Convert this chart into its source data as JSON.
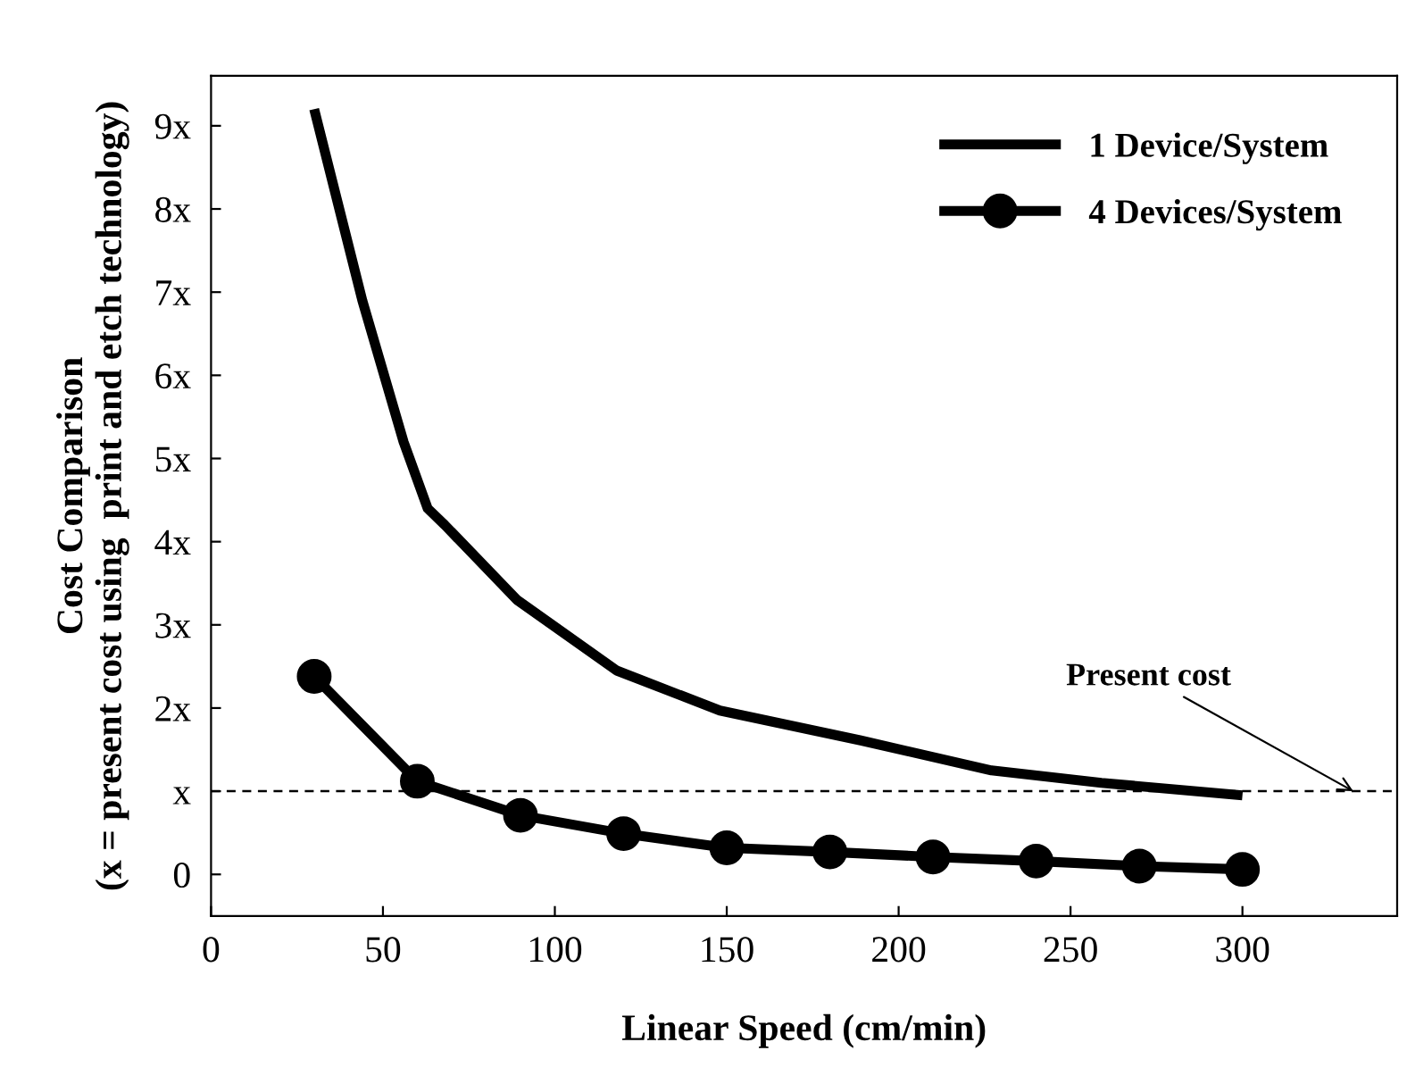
{
  "chart_data": {
    "type": "line",
    "xlabel": "Linear Speed (cm/min)",
    "ylabel": "Cost Comparison\n(x = present cost using  print and etch technology)",
    "series": [
      {
        "name": "1 Device/System",
        "color": "#000000",
        "marker": "none",
        "x": [
          30,
          44,
          56,
          63,
          68,
          89,
          118,
          148,
          189,
          227,
          259,
          300
        ],
        "values": [
          9.2,
          6.9,
          5.2,
          4.4,
          4.2,
          3.3,
          2.45,
          1.97,
          1.61,
          1.25,
          1.1,
          0.95
        ]
      },
      {
        "name": "4 Devices/System",
        "color": "#000000",
        "marker": "circle",
        "x": [
          30,
          60,
          90,
          120,
          150,
          180,
          210,
          240,
          270,
          300
        ],
        "values": [
          2.38,
          1.12,
          0.71,
          0.49,
          0.32,
          0.27,
          0.21,
          0.16,
          0.1,
          0.06
        ]
      }
    ],
    "xlim": [
      0,
      345
    ],
    "xticks": [
      0,
      50,
      100,
      150,
      200,
      250,
      300
    ],
    "ylim": [
      -0.5,
      9.6
    ],
    "yticks": [
      0,
      {
        "value": 1,
        "label": "x"
      },
      {
        "value": 2,
        "label": "2x"
      },
      {
        "value": 3,
        "label": "3x"
      },
      {
        "value": 4,
        "label": "4x"
      },
      {
        "value": 5,
        "label": "5x"
      },
      {
        "value": 6,
        "label": "6x"
      },
      {
        "value": 7,
        "label": "7x"
      },
      {
        "value": 8,
        "label": "8x"
      },
      {
        "value": 9,
        "label": "9x"
      }
    ],
    "ref_lines": [
      {
        "axis": "y",
        "value": 1,
        "label": "Present cost",
        "color": "#000000",
        "line_style": "dashed"
      }
    ],
    "legend": "top right",
    "grid": false
  }
}
